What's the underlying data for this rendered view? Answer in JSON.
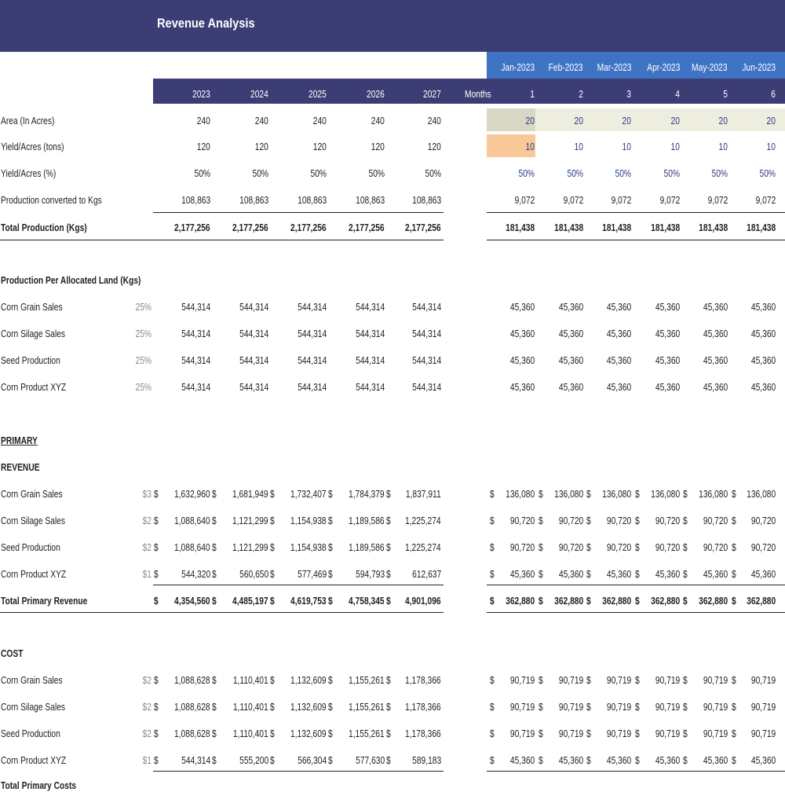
{
  "title": "Revenue Analysis",
  "months": [
    "Jan-2023",
    "Feb-2023",
    "Mar-2023",
    "Apr-2023",
    "May-2023",
    "Jun-2023"
  ],
  "years": [
    "2023",
    "2024",
    "2025",
    "2026",
    "2027"
  ],
  "months_label": "Months",
  "month_nums": [
    "1",
    "2",
    "3",
    "4",
    "5",
    "6"
  ],
  "section_production_per_land": "Production Per Allocated Land (Kgs)",
  "section_primary": "PRIMARY",
  "section_revenue": "REVENUE",
  "section_cost": "COST",
  "currency": "$",
  "colors": {
    "title_bg": "#3b3d74",
    "month_bg": "#3e74c3",
    "area_input": "#d8d8c4",
    "area_row": "#eeeee0",
    "yield_input": "#f8c898",
    "input_text": "#2b3a8c"
  },
  "rows": {
    "area": {
      "label": "Area (In Acres)",
      "years": [
        "240",
        "240",
        "240",
        "240",
        "240"
      ],
      "months": [
        "20",
        "20",
        "20",
        "20",
        "20",
        "20"
      ]
    },
    "yield_tons": {
      "label": "Yield/Acres (tons)",
      "years": [
        "120",
        "120",
        "120",
        "120",
        "120"
      ],
      "months": [
        "10",
        "10",
        "10",
        "10",
        "10",
        "10"
      ]
    },
    "yield_pct": {
      "label": "Yield/Acres (%)",
      "years": [
        "50%",
        "50%",
        "50%",
        "50%",
        "50%"
      ],
      "months": [
        "50%",
        "50%",
        "50%",
        "50%",
        "50%",
        "50%"
      ]
    },
    "prod_kgs": {
      "label": "Production converted to Kgs",
      "years": [
        "108,863",
        "108,863",
        "108,863",
        "108,863",
        "108,863"
      ],
      "months": [
        "9,072",
        "9,072",
        "9,072",
        "9,072",
        "9,072",
        "9,072"
      ]
    },
    "total_prod": {
      "label": "Total Production (Kgs)",
      "years": [
        "2,177,256",
        "2,177,256",
        "2,177,256",
        "2,177,256",
        "2,177,256"
      ],
      "months": [
        "181,438",
        "181,438",
        "181,438",
        "181,438",
        "181,438",
        "181,438"
      ]
    }
  },
  "alloc_rows": [
    {
      "label": "Corn Grain Sales",
      "pct": "25%",
      "years": [
        "544,314",
        "544,314",
        "544,314",
        "544,314",
        "544,314"
      ],
      "months": [
        "45,360",
        "45,360",
        "45,360",
        "45,360",
        "45,360",
        "45,360"
      ]
    },
    {
      "label": "Corn Silage Sales",
      "pct": "25%",
      "years": [
        "544,314",
        "544,314",
        "544,314",
        "544,314",
        "544,314"
      ],
      "months": [
        "45,360",
        "45,360",
        "45,360",
        "45,360",
        "45,360",
        "45,360"
      ]
    },
    {
      "label": "Seed Production",
      "pct": "25%",
      "years": [
        "544,314",
        "544,314",
        "544,314",
        "544,314",
        "544,314"
      ],
      "months": [
        "45,360",
        "45,360",
        "45,360",
        "45,360",
        "45,360",
        "45,360"
      ]
    },
    {
      "label": "Corn Product XYZ",
      "pct": "25%",
      "years": [
        "544,314",
        "544,314",
        "544,314",
        "544,314",
        "544,314"
      ],
      "months": [
        "45,360",
        "45,360",
        "45,360",
        "45,360",
        "45,360",
        "45,360"
      ]
    }
  ],
  "revenue_rows": [
    {
      "label": "Corn Grain Sales",
      "price": "$3",
      "years": [
        "1,632,960",
        "1,681,949",
        "1,732,407",
        "1,784,379",
        "1,837,911"
      ],
      "months": [
        "136,080",
        "136,080",
        "136,080",
        "136,080",
        "136,080",
        "136,080"
      ]
    },
    {
      "label": "Corn Silage Sales",
      "price": "$2",
      "years": [
        "1,088,640",
        "1,121,299",
        "1,154,938",
        "1,189,586",
        "1,225,274"
      ],
      "months": [
        "90,720",
        "90,720",
        "90,720",
        "90,720",
        "90,720",
        "90,720"
      ]
    },
    {
      "label": "Seed Production",
      "price": "$2",
      "years": [
        "1,088,640",
        "1,121,299",
        "1,154,938",
        "1,189,586",
        "1,225,274"
      ],
      "months": [
        "90,720",
        "90,720",
        "90,720",
        "90,720",
        "90,720",
        "90,720"
      ]
    },
    {
      "label": "Corn Product XYZ",
      "price": "$1",
      "years": [
        "544,320",
        "560,650",
        "577,469",
        "594,793",
        "612,637"
      ],
      "months": [
        "45,360",
        "45,360",
        "45,360",
        "45,360",
        "45,360",
        "45,360"
      ]
    }
  ],
  "revenue_total": {
    "label": "Total Primary Revenue",
    "years": [
      "4,354,560",
      "4,485,197",
      "4,619,753",
      "4,758,345",
      "4,901,096"
    ],
    "months": [
      "362,880",
      "362,880",
      "362,880",
      "362,880",
      "362,880",
      "362,880"
    ]
  },
  "cost_rows": [
    {
      "label": "Corn Grain Sales",
      "price": "$2",
      "years": [
        "1,088,628",
        "1,110,401",
        "1,132,609",
        "1,155,261",
        "1,178,366"
      ],
      "months": [
        "90,719",
        "90,719",
        "90,719",
        "90,719",
        "90,719",
        "90,719"
      ]
    },
    {
      "label": "Corn Silage Sales",
      "price": "$2",
      "years": [
        "1,088,628",
        "1,110,401",
        "1,132,609",
        "1,155,261",
        "1,178,366"
      ],
      "months": [
        "90,719",
        "90,719",
        "90,719",
        "90,719",
        "90,719",
        "90,719"
      ]
    },
    {
      "label": "Seed Production",
      "price": "$2",
      "years": [
        "1,088,628",
        "1,110,401",
        "1,132,609",
        "1,155,261",
        "1,178,366"
      ],
      "months": [
        "90,719",
        "90,719",
        "90,719",
        "90,719",
        "90,719",
        "90,719"
      ]
    },
    {
      "label": "Corn Product XYZ",
      "price": "$1",
      "years": [
        "544,314",
        "555,200",
        "566,304",
        "577,630",
        "589,183"
      ],
      "months": [
        "45,360",
        "45,360",
        "45,360",
        "45,360",
        "45,360",
        "45,360"
      ]
    }
  ],
  "cost_total": {
    "label": "Total Primary Costs"
  }
}
